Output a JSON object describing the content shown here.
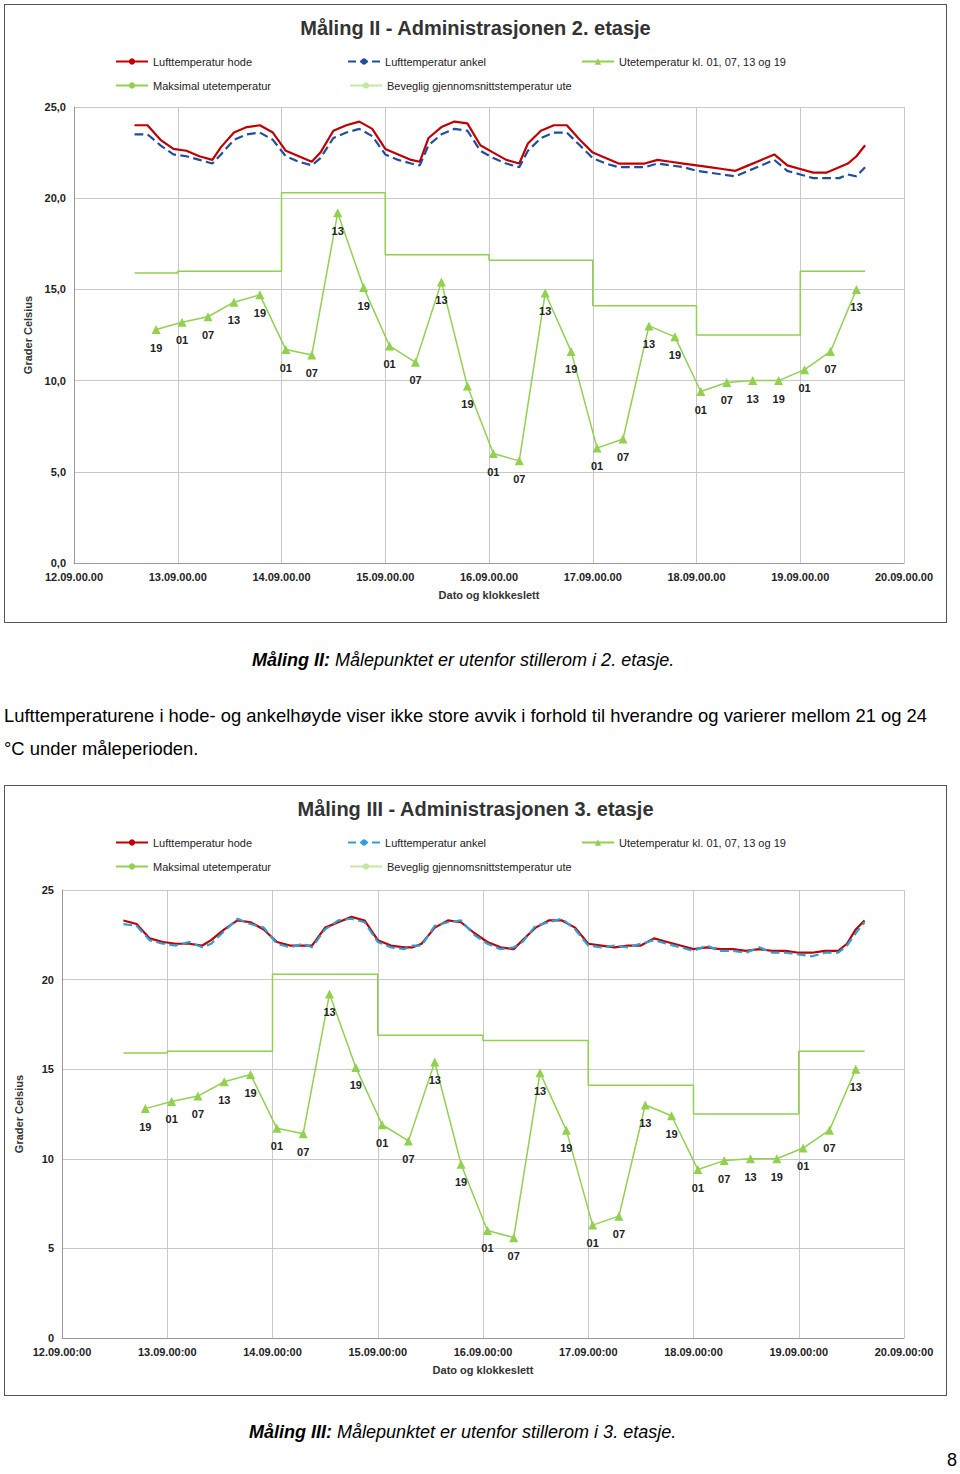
{
  "chart_data": [
    {
      "type": "line",
      "title": "Måling II - Administrasjonen 2. etasje",
      "x_label": "Dato og klokkeslett",
      "y_label": "Grader Celsius",
      "xlim": [
        0,
        192
      ],
      "xticks": [
        {
          "value": 0,
          "label": "12.09.00.00"
        },
        {
          "value": 24,
          "label": "13.09.00.00"
        },
        {
          "value": 48,
          "label": "14.09.00.00"
        },
        {
          "value": 72,
          "label": "15.09.00.00"
        },
        {
          "value": 96,
          "label": "16.09.00.00"
        },
        {
          "value": 120,
          "label": "17.09.00.00"
        },
        {
          "value": 144,
          "label": "18.09.00.00"
        },
        {
          "value": 168,
          "label": "19.09.00.00"
        },
        {
          "value": 192,
          "label": "20.09.00.00"
        }
      ],
      "ylim": [
        0,
        25
      ],
      "yticks": [
        {
          "value": 0,
          "label": "0,0"
        },
        {
          "value": 5,
          "label": "5,0"
        },
        {
          "value": 10,
          "label": "10,0"
        },
        {
          "value": 15,
          "label": "15,0"
        },
        {
          "value": 20,
          "label": "20,0"
        },
        {
          "value": 25,
          "label": "25,0"
        }
      ],
      "grid": true,
      "series": [
        {
          "name": "Lufttemperatur hode",
          "color": "#c00000",
          "line_style": "solid",
          "x": [
            14,
            17,
            20,
            23,
            26,
            29,
            32,
            34,
            37,
            40,
            43,
            46,
            49,
            52,
            55,
            57,
            60,
            63,
            66,
            69,
            72,
            75,
            78,
            80,
            82,
            85,
            88,
            91,
            94,
            97,
            100,
            103,
            105,
            108,
            111,
            114,
            117,
            120,
            123,
            126,
            129,
            132,
            135,
            138,
            141,
            144,
            147,
            150,
            153,
            156,
            159,
            162,
            165,
            168,
            171,
            174,
            177,
            179,
            181,
            183
          ],
          "values": [
            24.0,
            24.0,
            23.2,
            22.7,
            22.6,
            22.3,
            22.1,
            22.8,
            23.6,
            23.9,
            24.0,
            23.6,
            22.6,
            22.3,
            22.0,
            22.5,
            23.7,
            24.0,
            24.2,
            23.8,
            22.7,
            22.4,
            22.1,
            22.0,
            23.3,
            23.9,
            24.2,
            24.1,
            22.9,
            22.5,
            22.1,
            21.9,
            23.0,
            23.7,
            24.0,
            24.0,
            23.2,
            22.5,
            22.2,
            21.9,
            21.9,
            21.9,
            22.1,
            22.0,
            21.9,
            21.8,
            21.7,
            21.6,
            21.5,
            21.8,
            22.1,
            22.4,
            21.8,
            21.6,
            21.4,
            21.4,
            21.7,
            21.9,
            22.3,
            22.9
          ]
        },
        {
          "name": "Lufttemperatur ankel",
          "color": "#1f4e9a",
          "line_style": "dashed",
          "x": [
            14,
            17,
            20,
            23,
            26,
            29,
            32,
            34,
            37,
            40,
            43,
            46,
            49,
            52,
            55,
            57,
            60,
            63,
            66,
            69,
            72,
            75,
            78,
            80,
            82,
            85,
            88,
            91,
            94,
            97,
            100,
            103,
            105,
            108,
            111,
            114,
            117,
            120,
            123,
            126,
            129,
            132,
            135,
            138,
            141,
            144,
            147,
            150,
            153,
            156,
            159,
            162,
            165,
            168,
            171,
            174,
            177,
            179,
            181,
            183
          ],
          "values": [
            23.5,
            23.5,
            22.9,
            22.4,
            22.3,
            22.1,
            21.9,
            22.4,
            23.2,
            23.5,
            23.6,
            23.2,
            22.3,
            22.0,
            21.8,
            22.2,
            23.3,
            23.6,
            23.8,
            23.4,
            22.4,
            22.1,
            21.9,
            21.8,
            22.9,
            23.5,
            23.8,
            23.7,
            22.6,
            22.2,
            21.9,
            21.7,
            22.6,
            23.3,
            23.6,
            23.6,
            22.9,
            22.2,
            21.9,
            21.7,
            21.7,
            21.7,
            21.9,
            21.8,
            21.7,
            21.5,
            21.4,
            21.3,
            21.2,
            21.5,
            21.8,
            22.1,
            21.5,
            21.3,
            21.1,
            21.1,
            21.1,
            21.3,
            21.2,
            21.7
          ]
        },
        {
          "name": "Utetemperatur kl. 01, 07, 13 og 19",
          "color": "#92d050",
          "marker": "triangle",
          "line_style": "solid",
          "x": [
            19,
            25,
            31,
            37,
            43,
            49,
            55,
            61,
            67,
            73,
            79,
            85,
            91,
            97,
            103,
            109,
            115,
            121,
            127,
            133,
            139,
            145,
            151,
            157,
            163,
            169,
            175,
            181
          ],
          "values": [
            12.8,
            13.2,
            13.5,
            14.3,
            14.7,
            11.7,
            11.4,
            19.2,
            15.1,
            11.9,
            11.0,
            15.4,
            9.7,
            6.0,
            5.6,
            14.8,
            11.6,
            6.3,
            6.8,
            13.0,
            12.4,
            9.4,
            9.9,
            10.0,
            10.0,
            10.6,
            11.6,
            15.0
          ],
          "labels": [
            "19",
            "01",
            "07",
            "13",
            "19",
            "01",
            "07",
            "13",
            "19",
            "01",
            "07",
            "13",
            "19",
            "01",
            "07",
            "13",
            "19",
            "01",
            "07",
            "13",
            "19",
            "01",
            "07",
            "13",
            "19",
            "01",
            "07",
            "13"
          ]
        },
        {
          "name": "Maksimal utetemperatur",
          "color": "#92d050",
          "line_style": "solid",
          "x": [
            14,
            24,
            24,
            48,
            48,
            72,
            72,
            96,
            96,
            120,
            120,
            144,
            144,
            168,
            168,
            183
          ],
          "values": [
            15.9,
            15.9,
            16.0,
            16.0,
            20.3,
            20.3,
            16.9,
            16.9,
            16.6,
            16.6,
            14.1,
            14.1,
            12.5,
            12.5,
            16.0,
            16.0
          ]
        },
        {
          "name": "Beveglig gjennomsnittstemperatur ute",
          "color": "#c3e6a0",
          "line_style": "solid",
          "x": [],
          "values": []
        }
      ]
    },
    {
      "type": "line",
      "title": "Måling III - Administrasjonen 3. etasje",
      "x_label": "Dato og klokkeslett",
      "y_label": "Grader Celsius",
      "xlim": [
        0,
        192
      ],
      "xticks": [
        {
          "value": 0,
          "label": "12.09.00:00"
        },
        {
          "value": 24,
          "label": "13.09.00:00"
        },
        {
          "value": 48,
          "label": "14.09.00:00"
        },
        {
          "value": 72,
          "label": "15.09.00:00"
        },
        {
          "value": 96,
          "label": "16.09.00:00"
        },
        {
          "value": 120,
          "label": "17.09.00:00"
        },
        {
          "value": 144,
          "label": "18.09.00:00"
        },
        {
          "value": 168,
          "label": "19.09.00:00"
        },
        {
          "value": 192,
          "label": "20.09.00:00"
        }
      ],
      "ylim": [
        0,
        25
      ],
      "yticks": [
        0,
        5,
        10,
        15,
        20,
        25
      ],
      "grid": true,
      "series": [
        {
          "name": "Lufttemperatur hode",
          "color": "#c00000",
          "line_style": "solid",
          "x": [
            14,
            17,
            20,
            23,
            26,
            29,
            32,
            34,
            37,
            40,
            43,
            46,
            49,
            52,
            55,
            57,
            60,
            63,
            66,
            69,
            72,
            75,
            78,
            80,
            82,
            85,
            88,
            91,
            94,
            97,
            100,
            103,
            105,
            108,
            111,
            114,
            117,
            120,
            123,
            126,
            129,
            132,
            135,
            138,
            141,
            144,
            147,
            150,
            153,
            156,
            159,
            162,
            165,
            168,
            171,
            174,
            177,
            179,
            181,
            183
          ],
          "values": [
            23.3,
            23.1,
            22.3,
            22.1,
            22.0,
            22.0,
            21.9,
            22.2,
            22.8,
            23.3,
            23.2,
            22.8,
            22.1,
            21.9,
            21.9,
            21.9,
            22.9,
            23.2,
            23.5,
            23.3,
            22.2,
            21.9,
            21.8,
            21.8,
            22.0,
            22.9,
            23.3,
            23.2,
            22.6,
            22.1,
            21.8,
            21.7,
            22.2,
            22.9,
            23.3,
            23.3,
            22.9,
            22.0,
            21.9,
            21.8,
            21.9,
            21.9,
            22.3,
            22.1,
            21.9,
            21.7,
            21.8,
            21.7,
            21.7,
            21.6,
            21.7,
            21.6,
            21.6,
            21.5,
            21.5,
            21.6,
            21.6,
            22.0,
            22.8,
            23.3
          ]
        },
        {
          "name": "Lufttemperatur ankel",
          "color": "#2e9fd8",
          "line_style": "dashed",
          "x": [
            14,
            17,
            20,
            23,
            26,
            29,
            32,
            34,
            37,
            40,
            43,
            46,
            49,
            52,
            55,
            57,
            60,
            63,
            66,
            69,
            72,
            75,
            78,
            80,
            82,
            85,
            88,
            91,
            94,
            97,
            100,
            103,
            105,
            108,
            111,
            114,
            117,
            120,
            123,
            126,
            129,
            132,
            135,
            138,
            141,
            144,
            147,
            150,
            153,
            156,
            159,
            162,
            165,
            168,
            171,
            174,
            177,
            179,
            181,
            183
          ],
          "values": [
            23.1,
            23.0,
            22.2,
            22.0,
            21.9,
            22.1,
            21.8,
            22.0,
            22.7,
            23.4,
            23.1,
            22.9,
            22.0,
            21.8,
            22.0,
            21.8,
            22.8,
            23.3,
            23.4,
            23.2,
            22.1,
            21.8,
            21.7,
            21.9,
            21.9,
            23.0,
            23.2,
            23.3,
            22.5,
            22.0,
            21.7,
            21.8,
            22.1,
            23.0,
            23.2,
            23.4,
            22.8,
            21.9,
            21.8,
            21.9,
            21.8,
            22.0,
            22.2,
            22.0,
            21.8,
            21.6,
            21.9,
            21.6,
            21.6,
            21.5,
            21.8,
            21.5,
            21.5,
            21.4,
            21.3,
            21.5,
            21.5,
            21.9,
            22.6,
            23.2
          ]
        },
        {
          "name": "Utetemperatur kl. 01, 07, 13 og 19",
          "color": "#92d050",
          "marker": "triangle",
          "line_style": "solid",
          "x": [
            19,
            25,
            31,
            37,
            43,
            49,
            55,
            61,
            67,
            73,
            79,
            85,
            91,
            97,
            103,
            109,
            115,
            121,
            127,
            133,
            139,
            145,
            151,
            157,
            163,
            169,
            175,
            181
          ],
          "values": [
            12.8,
            13.2,
            13.5,
            14.3,
            14.7,
            11.7,
            11.4,
            19.2,
            15.1,
            11.9,
            11.0,
            15.4,
            9.7,
            6.0,
            5.6,
            14.8,
            11.6,
            6.3,
            6.8,
            13.0,
            12.4,
            9.4,
            9.9,
            10.0,
            10.0,
            10.6,
            11.6,
            15.0
          ],
          "labels": [
            "19",
            "01",
            "07",
            "13",
            "19",
            "01",
            "07",
            "13",
            "19",
            "01",
            "07",
            "13",
            "19",
            "01",
            "07",
            "13",
            "19",
            "01",
            "07",
            "13",
            "19",
            "01",
            "07",
            "13",
            "19",
            "01",
            "07",
            "13"
          ]
        },
        {
          "name": "Maksimal utetemperatur",
          "color": "#92d050",
          "line_style": "solid",
          "x": [
            14,
            24,
            24,
            48,
            48,
            72,
            72,
            96,
            96,
            120,
            120,
            144,
            144,
            168,
            168,
            183
          ],
          "values": [
            15.9,
            15.9,
            16.0,
            16.0,
            20.3,
            20.3,
            16.9,
            16.9,
            16.6,
            16.6,
            14.1,
            14.1,
            12.5,
            12.5,
            16.0,
            16.0
          ]
        },
        {
          "name": "Beveglig gjennomsnittstemperatur ute",
          "color": "#c3e6a0",
          "line_style": "solid",
          "x": [],
          "values": []
        }
      ]
    }
  ],
  "document": {
    "captions": [
      {
        "label": "Måling II:",
        "text": " Målepunktet er utenfor stillerom i 2. etasje."
      },
      {
        "label": "Måling III:",
        "text": " Målepunktet er utenfor stillerom i 3. etasje."
      }
    ],
    "paragraph": "Lufttemperaturene i hode- og ankelhøyde viser ikke store avvik i forhold til hverandre og varierer mellom 21 og 24 °C under måleperioden.",
    "page_number": "8"
  }
}
